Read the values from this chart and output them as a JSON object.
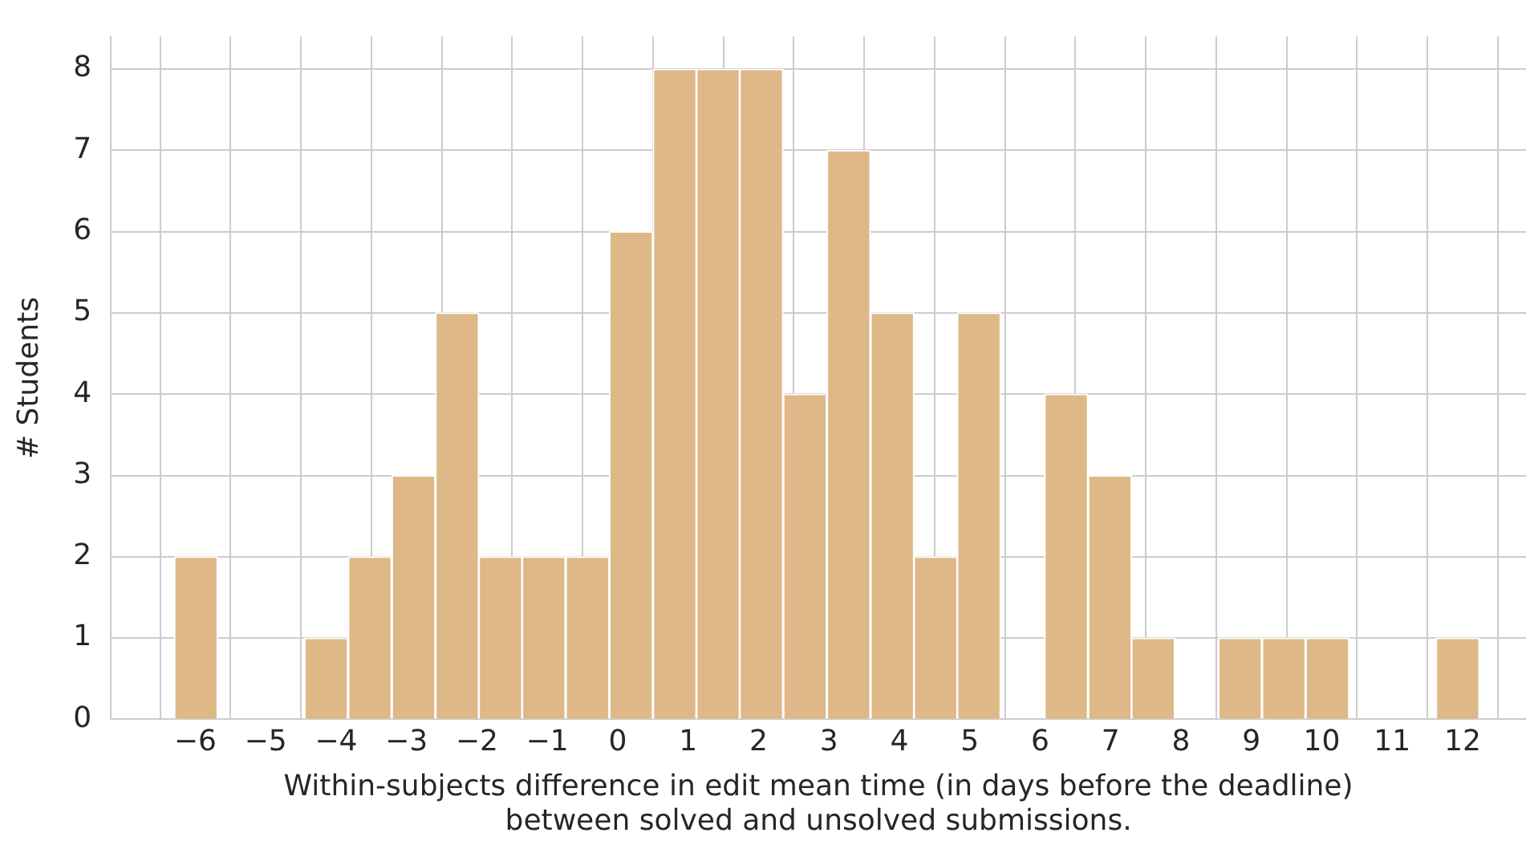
{
  "chart_data": {
    "type": "histogram",
    "xlabel": "Within-subjects difference in edit mean time (in days before the deadline)\nbetween solved and unsolved submissions.",
    "ylabel": "# Students",
    "bins": [
      -6.3,
      -5.68,
      -5.06,
      -4.45,
      -3.83,
      -3.21,
      -2.59,
      -1.97,
      -1.36,
      -0.74,
      -0.12,
      0.5,
      1.12,
      1.73,
      2.35,
      2.97,
      3.59,
      4.21,
      4.82,
      5.44,
      6.06,
      6.68,
      7.3,
      7.91,
      8.53,
      9.15,
      9.77,
      10.39,
      11.0,
      11.62,
      12.24
    ],
    "values": [
      2,
      0,
      0,
      1,
      2,
      3,
      5,
      2,
      2,
      2,
      6,
      8,
      8,
      8,
      4,
      7,
      5,
      2,
      5,
      0,
      4,
      3,
      1,
      0,
      1,
      1,
      1,
      0,
      0,
      1
    ],
    "color": "#deb887",
    "xlim": [
      -7.2,
      12.9
    ],
    "xticks": [
      {
        "value": -6,
        "label": "−6"
      },
      {
        "value": -5,
        "label": "−5"
      },
      {
        "value": -4,
        "label": "−4"
      },
      {
        "value": -3,
        "label": "−3"
      },
      {
        "value": -2,
        "label": "−2"
      },
      {
        "value": -1,
        "label": "−1"
      },
      0,
      1,
      2,
      3,
      4,
      5,
      6,
      7,
      8,
      9,
      10,
      11,
      12
    ],
    "ylim": [
      0,
      8.4
    ],
    "yticks": [
      0,
      1,
      2,
      3,
      4,
      5,
      6,
      7,
      8
    ],
    "grid": true,
    "legend": false
  }
}
